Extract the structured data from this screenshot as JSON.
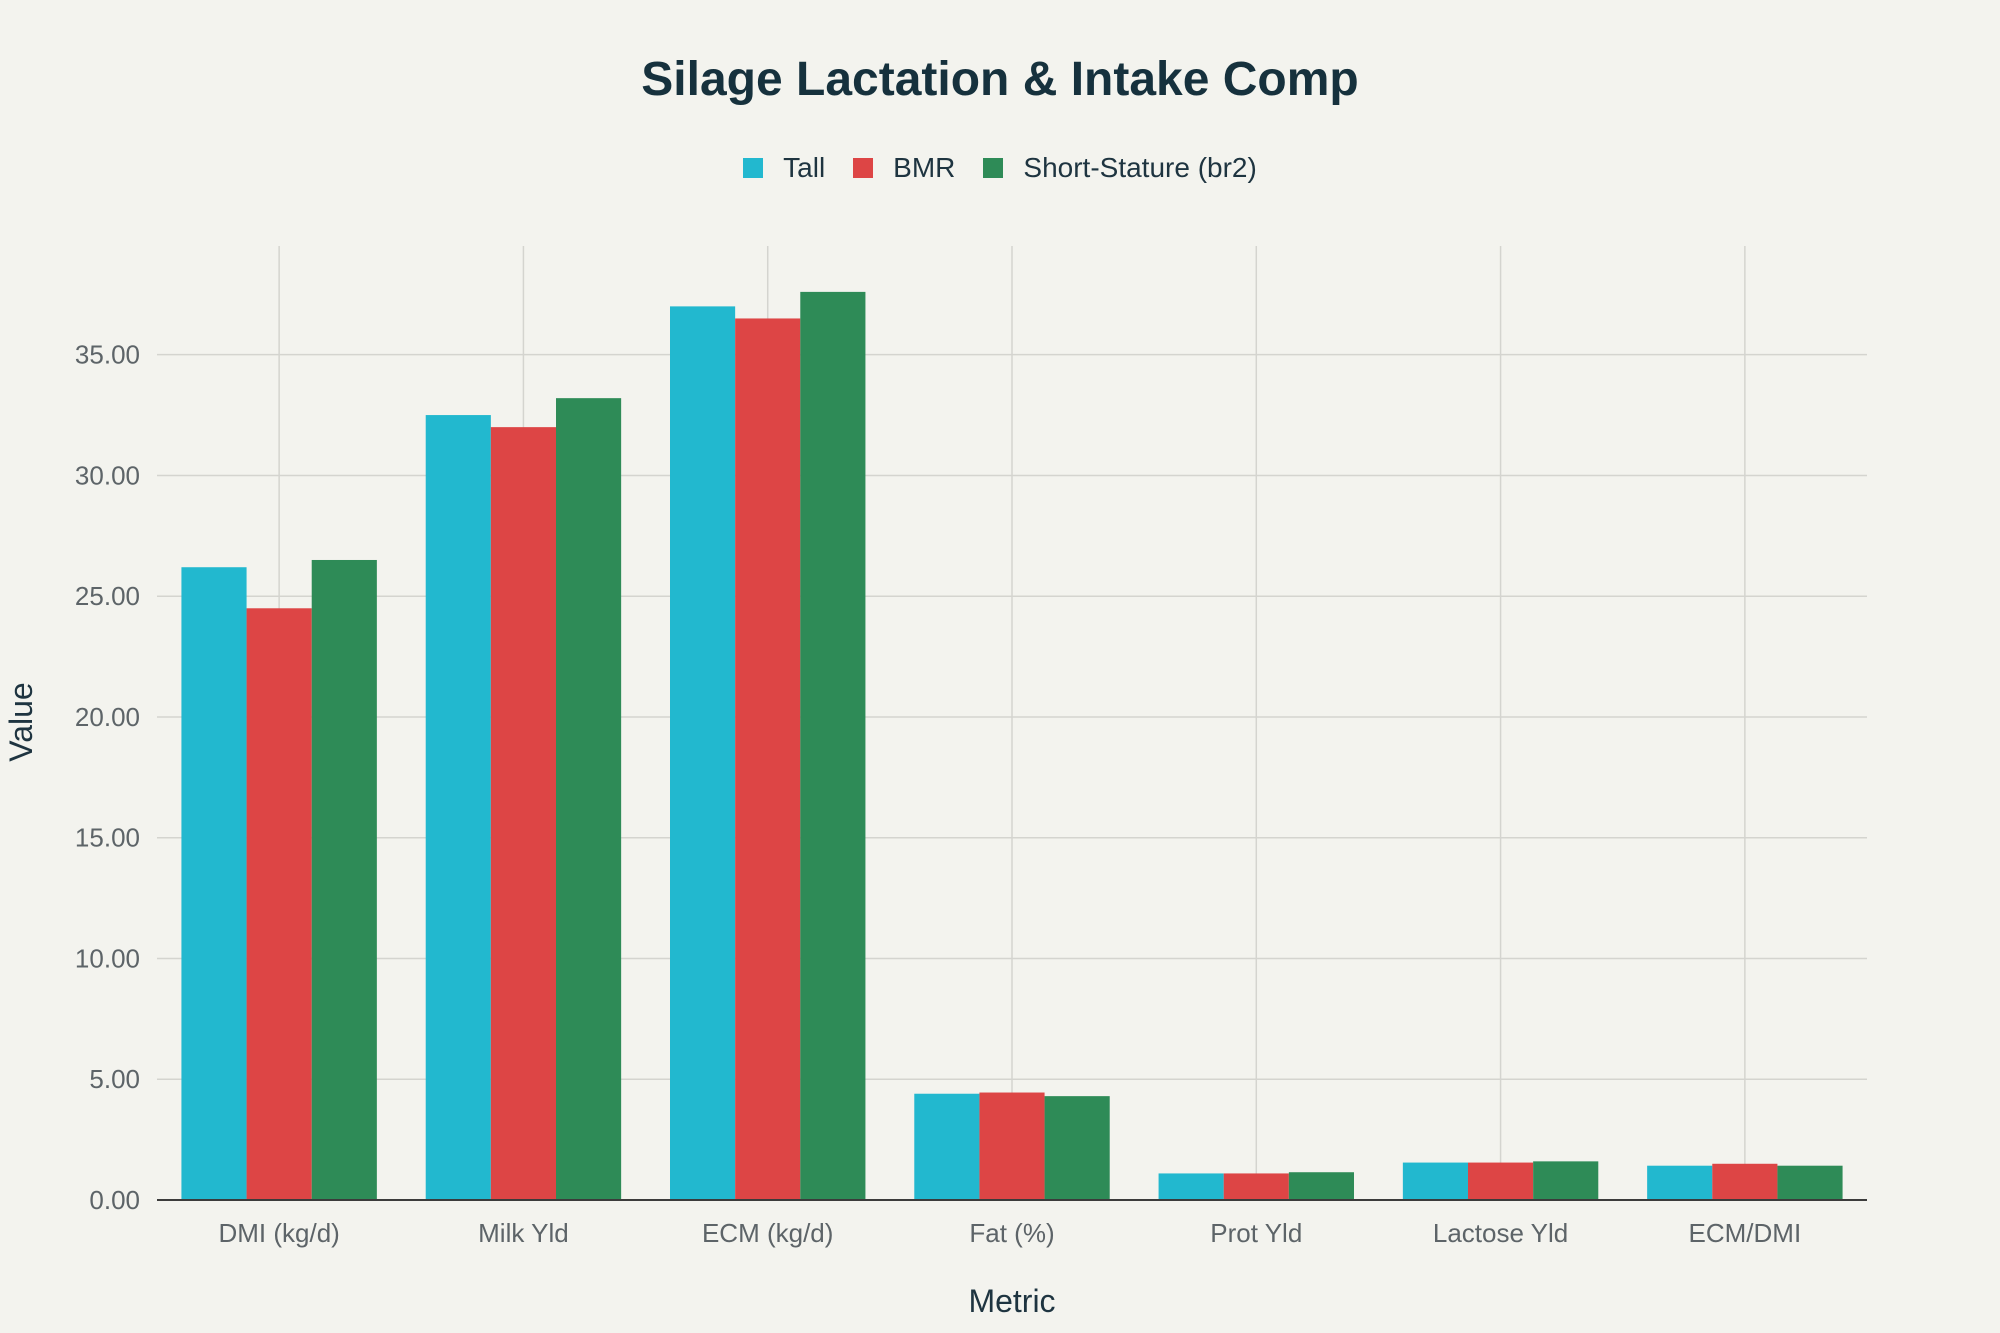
{
  "chart_data": {
    "type": "bar",
    "title": "Silage Lactation & Intake Comp",
    "xlabel": "Metric",
    "ylabel": "Value",
    "categories": [
      "DMI (kg/d)",
      "Milk Yld",
      "ECM (kg/d)",
      "Fat (%)",
      "Prot Yld",
      "Lactose Yld",
      "ECM/DMI"
    ],
    "series": [
      {
        "name": "Tall",
        "color": "#22b8cf",
        "values": [
          26.2,
          32.5,
          37.0,
          4.4,
          1.1,
          1.55,
          1.42
        ]
      },
      {
        "name": "BMR",
        "color": "#dd4545",
        "values": [
          24.5,
          32.0,
          36.5,
          4.45,
          1.1,
          1.55,
          1.5
        ]
      },
      {
        "name": "Short-Stature (br2)",
        "color": "#2e8b57",
        "values": [
          26.5,
          33.2,
          37.6,
          4.3,
          1.15,
          1.6,
          1.42
        ]
      }
    ],
    "ylim": [
      0,
      39.5
    ],
    "yticks": [
      0,
      5,
      10,
      15,
      20,
      25,
      30,
      35
    ],
    "ytick_labels": [
      "0.00",
      "5.00",
      "10.00",
      "15.00",
      "20.00",
      "25.00",
      "30.00",
      "35.00"
    ],
    "grid": true,
    "legend_position": "top-center"
  }
}
